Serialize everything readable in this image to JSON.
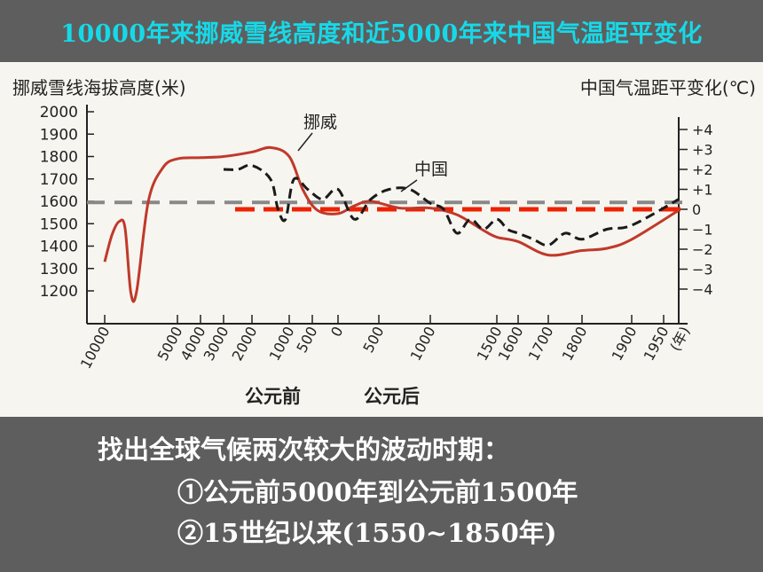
{
  "slide": {
    "title": "10000年来挪威雪线高度和近5000年来中国气温距平变化",
    "caption": {
      "heading": "找出全球气候两次较大的波动时期：",
      "item1": "①公元前5000年到公元前1500年",
      "item2": "②15世纪以来(1550~1850年)"
    }
  },
  "colors": {
    "title": "#16d9e8",
    "norway_line": "#c0392b",
    "china_line": "#1a1a1a",
    "gray_dash": "#888888",
    "red_dash": "#ee2200",
    "axis": "#222222"
  },
  "chart_data": {
    "type": "line",
    "left_axis": {
      "label": "挪威雪线海拔高度(米)",
      "ticks": [
        "2000",
        "1900",
        "1800",
        "1700",
        "1600",
        "1500",
        "1400",
        "1300",
        "1200"
      ],
      "range": [
        1150,
        2000
      ]
    },
    "right_axis": {
      "label": "中国气温距平变化(℃)",
      "ticks": [
        "+4",
        "+3",
        "+2",
        "+1",
        "0",
        "−1",
        "−2",
        "−3",
        "−4"
      ],
      "range": [
        -4,
        4
      ]
    },
    "x_axis": {
      "tick_labels": [
        "10000",
        "5000",
        "4000",
        "3000",
        "2000",
        "1000",
        "500",
        "0",
        "500",
        "1000",
        "1500",
        "1600",
        "1700",
        "1800",
        "1900",
        "1950",
        "(年)"
      ],
      "era_labels": [
        "公元前",
        "公元后"
      ]
    },
    "series": [
      {
        "name": "挪威",
        "note": "snow line altitude in meters (left axis); x as signed year (negative = BC)",
        "points": [
          [
            -10000,
            1330
          ],
          [
            -9500,
            1450
          ],
          [
            -9000,
            1510
          ],
          [
            -8600,
            1480
          ],
          [
            -8200,
            1190
          ],
          [
            -7800,
            1200
          ],
          [
            -7000,
            1600
          ],
          [
            -6000,
            1750
          ],
          [
            -5000,
            1790
          ],
          [
            -4000,
            1795
          ],
          [
            -3000,
            1800
          ],
          [
            -2000,
            1820
          ],
          [
            -1500,
            1840
          ],
          [
            -1000,
            1800
          ],
          [
            -700,
            1650
          ],
          [
            -400,
            1560
          ],
          [
            0,
            1545
          ],
          [
            200,
            1580
          ],
          [
            400,
            1600
          ],
          [
            700,
            1570
          ],
          [
            1000,
            1570
          ],
          [
            1200,
            1540
          ],
          [
            1400,
            1470
          ],
          [
            1500,
            1440
          ],
          [
            1600,
            1420
          ],
          [
            1700,
            1360
          ],
          [
            1800,
            1380
          ],
          [
            1850,
            1390
          ],
          [
            1900,
            1430
          ],
          [
            1950,
            1560
          ]
        ]
      },
      {
        "name": "中国",
        "note": "temperature anomaly in ℃ (right axis); x as signed year (negative = BC)",
        "points": [
          [
            -3000,
            2.0
          ],
          [
            -2500,
            2.0
          ],
          [
            -2000,
            2.2
          ],
          [
            -1500,
            1.5
          ],
          [
            -1300,
            0.0
          ],
          [
            -1100,
            -0.5
          ],
          [
            -900,
            1.5
          ],
          [
            -600,
            1.0
          ],
          [
            -300,
            0.5
          ],
          [
            0,
            1.0
          ],
          [
            200,
            -0.5
          ],
          [
            400,
            0.5
          ],
          [
            600,
            1.0
          ],
          [
            800,
            1.0
          ],
          [
            1000,
            0.3
          ],
          [
            1100,
            0.0
          ],
          [
            1200,
            -1.2
          ],
          [
            1300,
            -0.5
          ],
          [
            1400,
            -1.0
          ],
          [
            1500,
            -0.5
          ],
          [
            1550,
            -1.0
          ],
          [
            1600,
            -1.2
          ],
          [
            1650,
            -1.5
          ],
          [
            1700,
            -1.8
          ],
          [
            1750,
            -1.2
          ],
          [
            1800,
            -1.5
          ],
          [
            1850,
            -1.0
          ],
          [
            1900,
            -0.8
          ],
          [
            1950,
            0.5
          ]
        ]
      }
    ],
    "reference_lines": [
      {
        "label": "挪威 mean",
        "axis": "left",
        "value": 1595,
        "style": "dashed",
        "color": "#888888"
      },
      {
        "label": "中国 zero",
        "axis": "right",
        "value": 0,
        "style": "dashed",
        "color": "#ee2200"
      }
    ],
    "annotations": [
      "挪威",
      "中国"
    ]
  }
}
